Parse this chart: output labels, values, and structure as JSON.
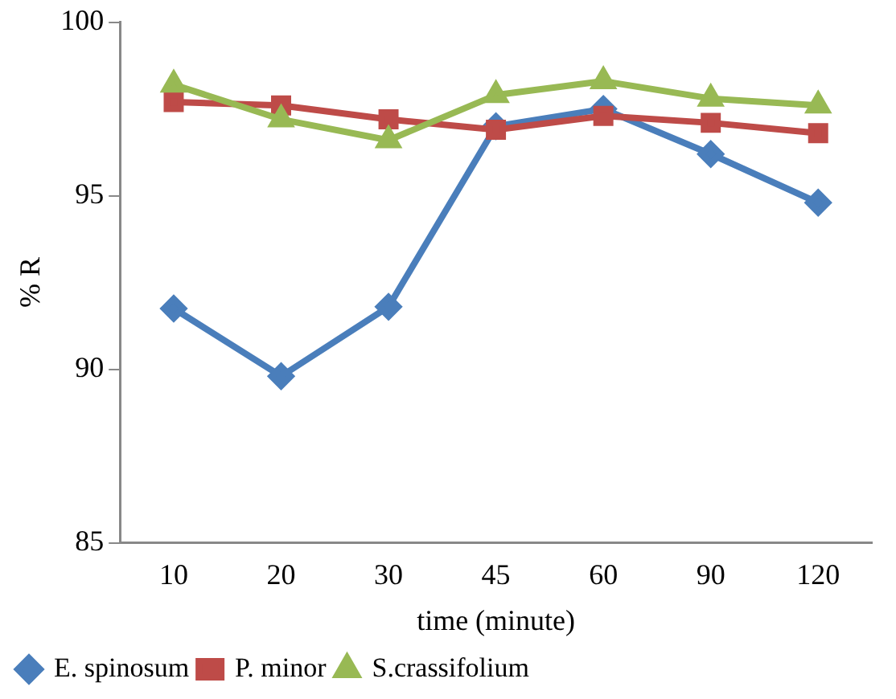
{
  "chart_data": {
    "type": "line",
    "xlabel": "time (minute)",
    "ylabel": "% R",
    "categories": [
      "10",
      "20",
      "30",
      "45",
      "60",
      "90",
      "120"
    ],
    "series": [
      {
        "name": "E. spinosum",
        "color": "#4a7ebb",
        "marker": "diamond",
        "values": [
          91.75,
          89.8,
          91.8,
          97.0,
          97.5,
          96.2,
          94.8
        ]
      },
      {
        "name": "P. minor",
        "color": "#be4b48",
        "marker": "square",
        "values": [
          97.7,
          97.6,
          97.2,
          96.9,
          97.3,
          97.1,
          96.8
        ]
      },
      {
        "name": "S.crassifolium",
        "color": "#98b954",
        "marker": "triangle",
        "values": [
          98.2,
          97.2,
          96.6,
          97.9,
          98.3,
          97.8,
          97.6
        ]
      }
    ],
    "ylim": [
      85,
      100
    ],
    "yticks": [
      85,
      90,
      95,
      100
    ],
    "grid": false,
    "legend": "bottom",
    "line_style": "solid"
  }
}
